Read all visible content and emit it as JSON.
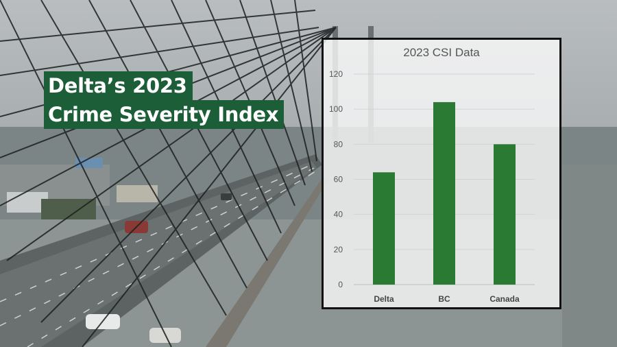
{
  "headline": {
    "line1": "Delta’s 2023",
    "line2": "Crime Severity Index"
  },
  "colors": {
    "brand_green": "#1b5e38",
    "bar_green": "#2a7a34"
  },
  "chart_data": {
    "type": "bar",
    "title": "2023 CSI Data",
    "categories": [
      "Delta",
      "BC",
      "Canada"
    ],
    "values": [
      64,
      104,
      80
    ],
    "xlabel": "",
    "ylabel": "",
    "ylim": [
      0,
      120
    ],
    "yticks": [
      0,
      20,
      40,
      60,
      80,
      100,
      120
    ],
    "grid": true,
    "legend": "none"
  }
}
